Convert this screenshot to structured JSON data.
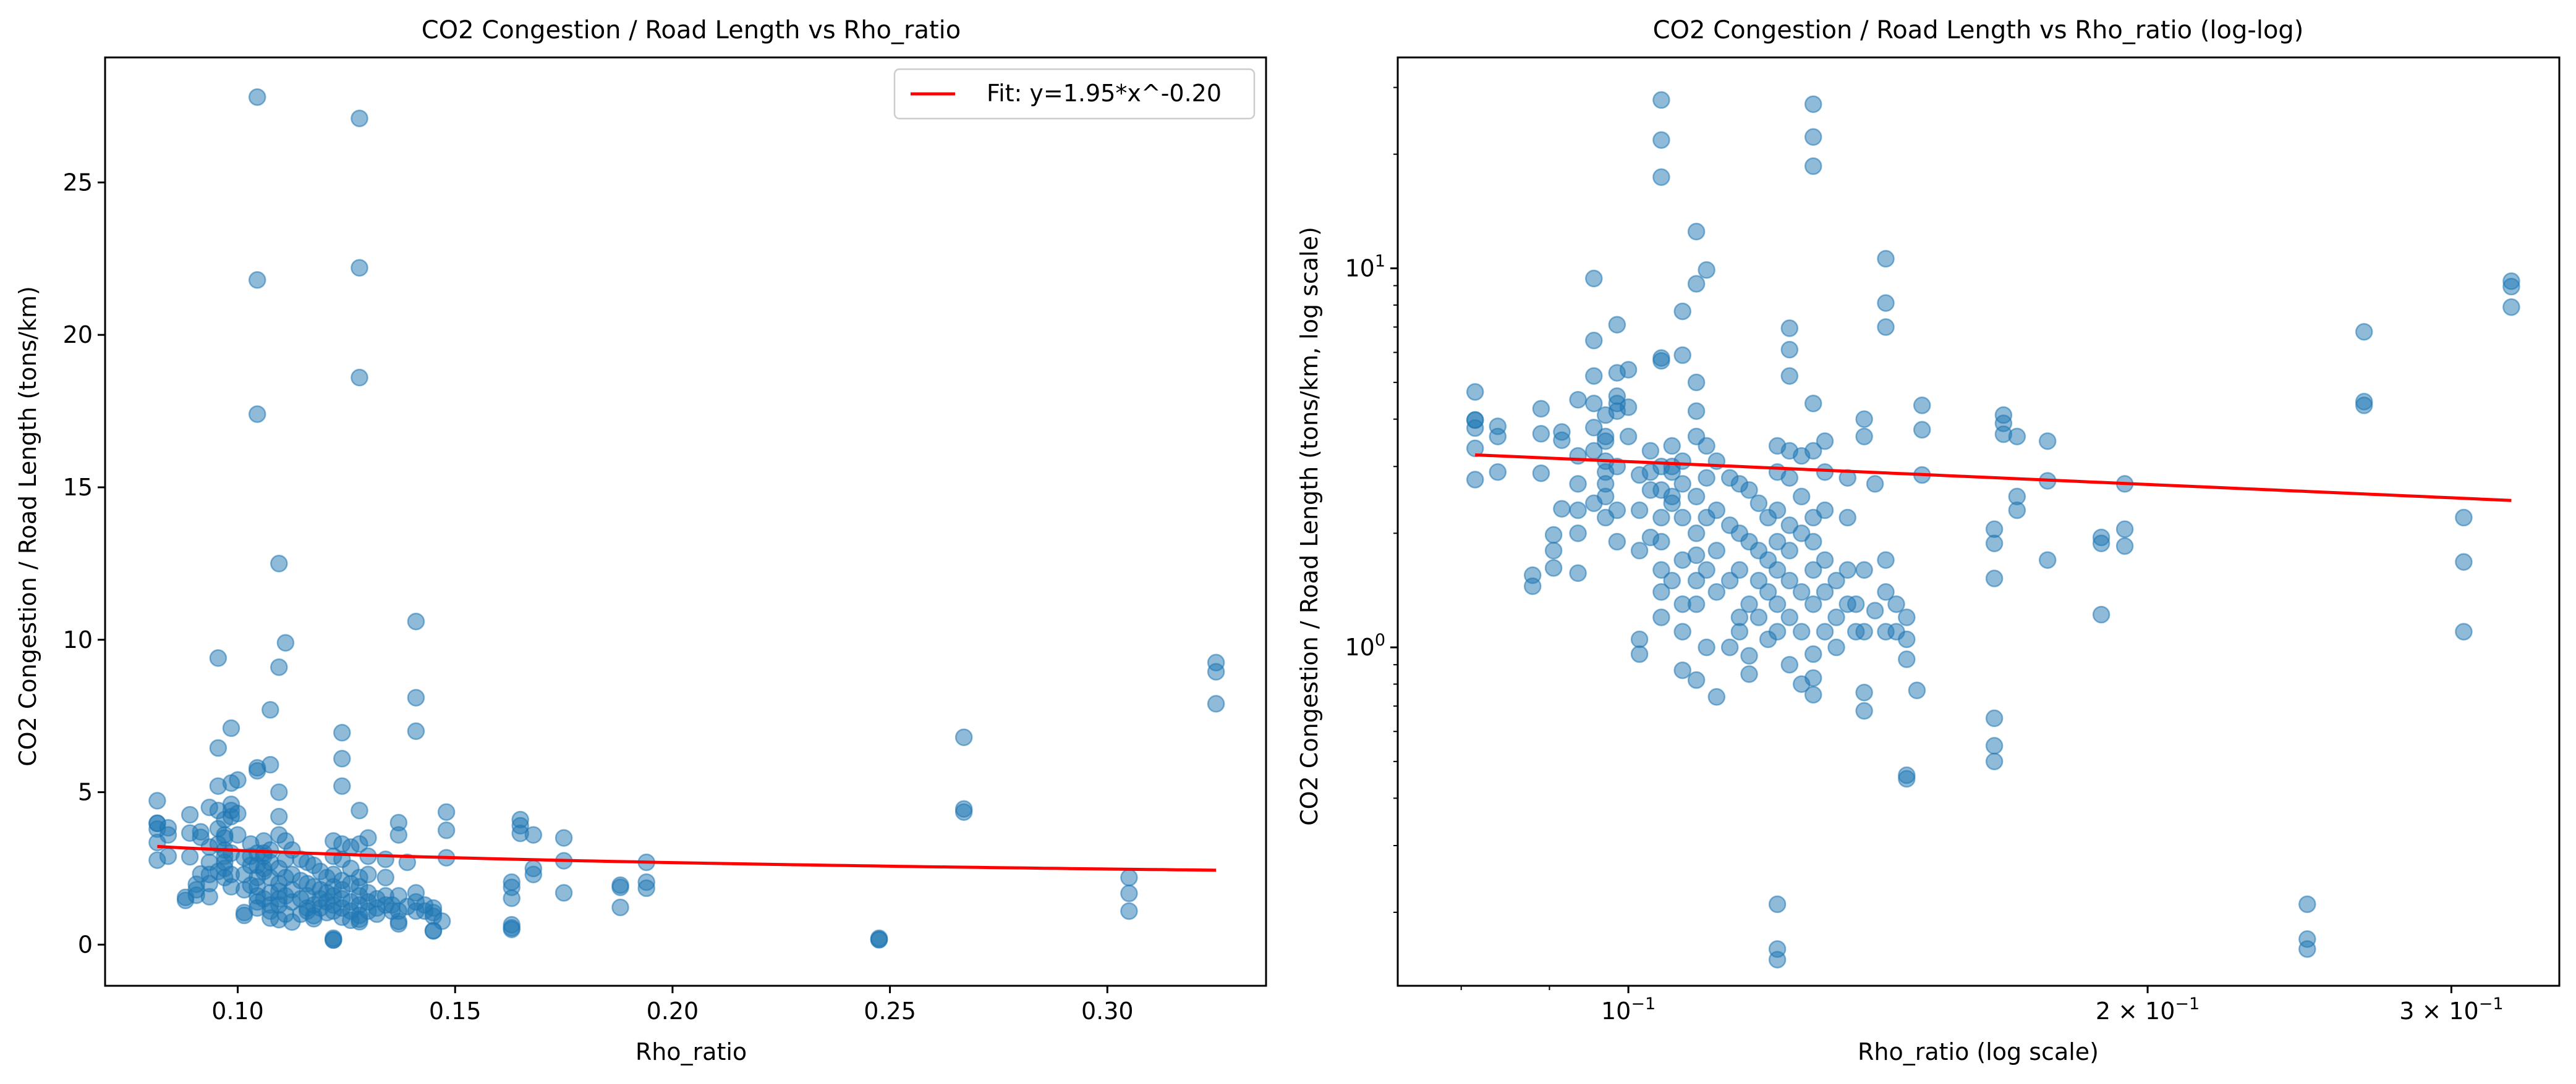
{
  "chart_data": [
    {
      "type": "scatter",
      "title": "CO2 Congestion / Road Length vs Rho_ratio",
      "xlabel": "Rho_ratio",
      "ylabel": "CO2 Congestion / Road Length (tons/km)",
      "xscale": "linear",
      "yscale": "linear",
      "xlim": [
        0.0695,
        0.3365
      ],
      "ylim": [
        -1.35,
        29.1
      ],
      "xticks": [
        0.1,
        0.15,
        0.2,
        0.25,
        0.3
      ],
      "xtick_labels": [
        "0.10",
        "0.15",
        "0.20",
        "0.25",
        "0.30"
      ],
      "yticks": [
        0,
        5,
        10,
        15,
        20,
        25
      ],
      "ytick_labels": [
        "0",
        "5",
        "10",
        "15",
        "20",
        "25"
      ],
      "legend": {
        "position": "top-right",
        "entries": [
          "Fit: y=1.95*x^-0.20"
        ]
      },
      "grid": false,
      "point_color": "#1f77b4",
      "fit_color": "#ff0000",
      "fit": {
        "a": 1.95,
        "b": -0.2,
        "x_range": [
          0.0815,
          0.325
        ]
      },
      "series": [
        {
          "kind": "scatter",
          "points_ref": "points"
        }
      ]
    },
    {
      "type": "scatter",
      "title": "CO2 Congestion / Road Length vs Rho_ratio (log-log)",
      "xlabel": "Rho_ratio (log scale)",
      "ylabel": "CO2 Congestion / Road Length (tons/km, log scale)",
      "xscale": "log",
      "yscale": "log",
      "xlim": [
        0.0735,
        0.3465
      ],
      "ylim": [
        0.128,
        36.0
      ],
      "xticks": [
        0.1,
        0.2,
        0.3
      ],
      "xtick_labels": [
        {
          "base": "10",
          "exp": "−1",
          "pre": ""
        },
        {
          "base": "10",
          "exp": "−1",
          "pre": "2 × "
        },
        {
          "base": "10",
          "exp": "−1",
          "pre": "3 × "
        }
      ],
      "yticks": [
        1,
        10
      ],
      "ytick_labels": [
        {
          "base": "10",
          "exp": "0",
          "pre": ""
        },
        {
          "base": "10",
          "exp": "1",
          "pre": ""
        }
      ],
      "grid": false,
      "point_color": "#1f77b4",
      "fit_color": "#ff0000",
      "fit": {
        "a": 1.95,
        "b": -0.2,
        "x_range": [
          0.0815,
          0.325
        ]
      },
      "series": [
        {
          "kind": "scatter",
          "points_ref": "points"
        }
      ]
    }
  ],
  "points": [
    [
      0.0815,
      4.72
    ],
    [
      0.0815,
      3.98
    ],
    [
      0.0815,
      3.79
    ],
    [
      0.0815,
      3.35
    ],
    [
      0.0815,
      3.98
    ],
    [
      0.0815,
      2.77
    ],
    [
      0.084,
      3.83
    ],
    [
      0.084,
      2.9
    ],
    [
      0.084,
      3.6
    ],
    [
      0.088,
      1.55
    ],
    [
      0.088,
      1.45
    ],
    [
      0.089,
      2.88
    ],
    [
      0.089,
      4.26
    ],
    [
      0.089,
      3.66
    ],
    [
      0.0905,
      1.98
    ],
    [
      0.0905,
      1.62
    ],
    [
      0.0905,
      1.8
    ],
    [
      0.0915,
      2.32
    ],
    [
      0.0915,
      3.52
    ],
    [
      0.0915,
      3.7
    ],
    [
      0.0935,
      4.5
    ],
    [
      0.0935,
      3.2
    ],
    [
      0.0935,
      2.7
    ],
    [
      0.0935,
      2.0
    ],
    [
      0.0935,
      1.57
    ],
    [
      0.0935,
      2.3
    ],
    [
      0.0955,
      9.4
    ],
    [
      0.0955,
      6.45
    ],
    [
      0.0955,
      5.2
    ],
    [
      0.0955,
      4.4
    ],
    [
      0.0955,
      3.8
    ],
    [
      0.0955,
      3.3
    ],
    [
      0.0955,
      2.4
    ],
    [
      0.097,
      3.6
    ],
    [
      0.097,
      2.2
    ],
    [
      0.097,
      2.9
    ],
    [
      0.097,
      3.1
    ],
    [
      0.097,
      3.5
    ],
    [
      0.097,
      4.1
    ],
    [
      0.097,
      2.5
    ],
    [
      0.097,
      2.7
    ],
    [
      0.0985,
      7.1
    ],
    [
      0.0985,
      5.3
    ],
    [
      0.0985,
      4.6
    ],
    [
      0.0985,
      4.2
    ],
    [
      0.0985,
      3.0
    ],
    [
      0.0985,
      1.9
    ],
    [
      0.0985,
      2.3
    ],
    [
      0.0985,
      4.4
    ],
    [
      0.1,
      5.4
    ],
    [
      0.1,
      4.3
    ],
    [
      0.1,
      3.6
    ],
    [
      0.1015,
      2.85
    ],
    [
      0.1015,
      1.8
    ],
    [
      0.1015,
      1.05
    ],
    [
      0.1015,
      0.96
    ],
    [
      0.1015,
      2.3
    ],
    [
      0.103,
      2.9
    ],
    [
      0.103,
      1.95
    ],
    [
      0.103,
      2.6
    ],
    [
      0.103,
      3.3
    ],
    [
      0.1045,
      27.8
    ],
    [
      0.1045,
      21.8
    ],
    [
      0.1045,
      17.4
    ],
    [
      0.1045,
      5.8
    ],
    [
      0.1045,
      5.7
    ],
    [
      0.1045,
      3.0
    ],
    [
      0.1045,
      2.6
    ],
    [
      0.1045,
      2.2
    ],
    [
      0.1045,
      1.9
    ],
    [
      0.1045,
      1.6
    ],
    [
      0.1045,
      1.4
    ],
    [
      0.1045,
      1.2
    ],
    [
      0.106,
      3.4
    ],
    [
      0.106,
      3.0
    ],
    [
      0.106,
      2.4
    ],
    [
      0.106,
      1.5
    ],
    [
      0.106,
      2.9
    ],
    [
      0.106,
      2.5
    ],
    [
      0.1075,
      7.7
    ],
    [
      0.1075,
      5.9
    ],
    [
      0.1075,
      3.1
    ],
    [
      0.1075,
      2.7
    ],
    [
      0.1075,
      2.2
    ],
    [
      0.1075,
      1.7
    ],
    [
      0.1075,
      1.3
    ],
    [
      0.1075,
      1.1
    ],
    [
      0.1075,
      0.87
    ],
    [
      0.1095,
      12.5
    ],
    [
      0.1095,
      9.1
    ],
    [
      0.1095,
      5.0
    ],
    [
      0.1095,
      4.2
    ],
    [
      0.1095,
      3.6
    ],
    [
      0.1095,
      2.5
    ],
    [
      0.1095,
      2.0
    ],
    [
      0.1095,
      1.75
    ],
    [
      0.1095,
      1.5
    ],
    [
      0.1095,
      1.3
    ],
    [
      0.1095,
      0.82
    ],
    [
      0.111,
      9.9
    ],
    [
      0.111,
      3.4
    ],
    [
      0.111,
      2.8
    ],
    [
      0.111,
      2.2
    ],
    [
      0.111,
      1.6
    ],
    [
      0.111,
      1.0
    ],
    [
      0.1125,
      3.1
    ],
    [
      0.1125,
      2.3
    ],
    [
      0.1125,
      1.8
    ],
    [
      0.1125,
      1.4
    ],
    [
      0.1125,
      0.74
    ],
    [
      0.1145,
      2.8
    ],
    [
      0.1145,
      2.1
    ],
    [
      0.1145,
      1.5
    ],
    [
      0.1145,
      1.0
    ],
    [
      0.116,
      2.7
    ],
    [
      0.116,
      2.0
    ],
    [
      0.116,
      1.6
    ],
    [
      0.116,
      1.2
    ],
    [
      0.116,
      1.1
    ],
    [
      0.1175,
      2.6
    ],
    [
      0.1175,
      1.9
    ],
    [
      0.1175,
      1.3
    ],
    [
      0.1175,
      0.95
    ],
    [
      0.1175,
      0.85
    ],
    [
      0.119,
      2.4
    ],
    [
      0.119,
      1.8
    ],
    [
      0.119,
      1.5
    ],
    [
      0.119,
      1.2
    ],
    [
      0.1205,
      2.2
    ],
    [
      0.1205,
      1.7
    ],
    [
      0.1205,
      1.4
    ],
    [
      0.1205,
      1.05
    ],
    [
      0.122,
      0.21
    ],
    [
      0.122,
      0.16
    ],
    [
      0.122,
      0.15
    ],
    [
      0.122,
      3.4
    ],
    [
      0.122,
      2.9
    ],
    [
      0.122,
      2.3
    ],
    [
      0.122,
      1.9
    ],
    [
      0.122,
      1.6
    ],
    [
      0.122,
      1.3
    ],
    [
      0.122,
      1.1
    ],
    [
      0.124,
      6.95
    ],
    [
      0.124,
      6.1
    ],
    [
      0.124,
      5.2
    ],
    [
      0.124,
      3.3
    ],
    [
      0.124,
      2.8
    ],
    [
      0.124,
      2.1
    ],
    [
      0.124,
      1.8
    ],
    [
      0.124,
      1.5
    ],
    [
      0.124,
      1.2
    ],
    [
      0.124,
      0.9
    ],
    [
      0.126,
      3.2
    ],
    [
      0.126,
      2.5
    ],
    [
      0.126,
      2.0
    ],
    [
      0.126,
      1.4
    ],
    [
      0.126,
      1.1
    ],
    [
      0.126,
      0.8
    ],
    [
      0.128,
      27.1
    ],
    [
      0.128,
      22.2
    ],
    [
      0.128,
      18.6
    ],
    [
      0.128,
      4.4
    ],
    [
      0.128,
      3.3
    ],
    [
      0.128,
      2.2
    ],
    [
      0.128,
      1.9
    ],
    [
      0.128,
      1.6
    ],
    [
      0.128,
      1.3
    ],
    [
      0.128,
      0.96
    ],
    [
      0.128,
      0.83
    ],
    [
      0.128,
      0.75
    ],
    [
      0.13,
      3.5
    ],
    [
      0.13,
      2.9
    ],
    [
      0.13,
      2.3
    ],
    [
      0.13,
      1.7
    ],
    [
      0.13,
      1.4
    ],
    [
      0.13,
      1.1
    ],
    [
      0.132,
      1.5
    ],
    [
      0.132,
      1.2
    ],
    [
      0.132,
      1.0
    ],
    [
      0.134,
      2.8
    ],
    [
      0.134,
      2.2
    ],
    [
      0.134,
      1.6
    ],
    [
      0.134,
      1.3
    ],
    [
      0.1355,
      1.3
    ],
    [
      0.1355,
      1.1
    ],
    [
      0.137,
      4.0
    ],
    [
      0.137,
      3.6
    ],
    [
      0.137,
      1.6
    ],
    [
      0.137,
      1.1
    ],
    [
      0.137,
      0.76
    ],
    [
      0.137,
      0.68
    ],
    [
      0.139,
      2.7
    ],
    [
      0.139,
      1.25
    ],
    [
      0.141,
      10.6
    ],
    [
      0.141,
      8.1
    ],
    [
      0.141,
      7.0
    ],
    [
      0.141,
      1.7
    ],
    [
      0.141,
      1.4
    ],
    [
      0.141,
      1.1
    ],
    [
      0.143,
      1.3
    ],
    [
      0.143,
      1.1
    ],
    [
      0.145,
      1.2
    ],
    [
      0.145,
      1.05
    ],
    [
      0.145,
      0.93
    ],
    [
      0.145,
      0.46
    ],
    [
      0.145,
      0.45
    ],
    [
      0.147,
      0.77
    ],
    [
      0.148,
      4.35
    ],
    [
      0.148,
      3.75
    ],
    [
      0.148,
      2.85
    ],
    [
      0.163,
      2.05
    ],
    [
      0.163,
      1.88
    ],
    [
      0.163,
      1.52
    ],
    [
      0.163,
      0.65
    ],
    [
      0.163,
      0.55
    ],
    [
      0.163,
      0.5
    ],
    [
      0.165,
      4.1
    ],
    [
      0.165,
      3.9
    ],
    [
      0.165,
      3.65
    ],
    [
      0.168,
      3.6
    ],
    [
      0.168,
      2.5
    ],
    [
      0.168,
      2.3
    ],
    [
      0.175,
      3.5
    ],
    [
      0.175,
      2.75
    ],
    [
      0.175,
      1.7
    ],
    [
      0.188,
      1.95
    ],
    [
      0.188,
      1.88
    ],
    [
      0.188,
      1.22
    ],
    [
      0.194,
      2.7
    ],
    [
      0.194,
      2.05
    ],
    [
      0.194,
      1.85
    ],
    [
      0.2475,
      0.21
    ],
    [
      0.2475,
      0.17
    ],
    [
      0.2475,
      0.16
    ],
    [
      0.267,
      6.8
    ],
    [
      0.267,
      4.45
    ],
    [
      0.267,
      4.35
    ],
    [
      0.305,
      2.2
    ],
    [
      0.305,
      1.68
    ],
    [
      0.305,
      1.1
    ],
    [
      0.325,
      9.25
    ],
    [
      0.325,
      8.95
    ],
    [
      0.325,
      7.9
    ]
  ]
}
